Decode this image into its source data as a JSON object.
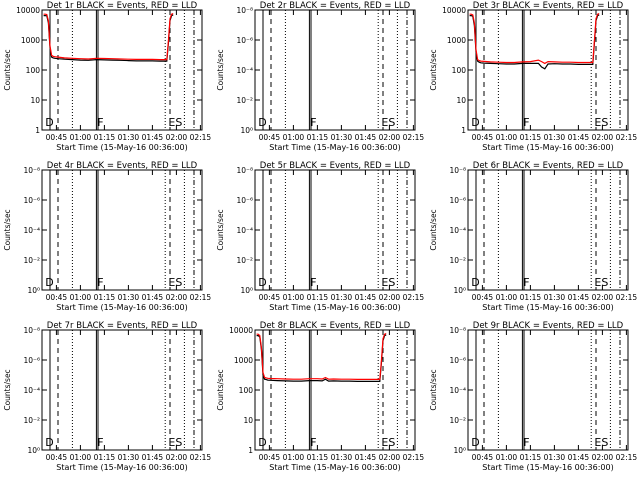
{
  "colors": {
    "events": "#000000",
    "lld": "#ff0000"
  },
  "chart_data": [
    {
      "type": "line",
      "title": "Det 1r BLACK = Events, RED = LLD",
      "xlabel": "Start Time (15-May-16 00:36:00)",
      "ylabel": "Counts/sec",
      "xticks": [
        "00:45",
        "01:00",
        "01:15",
        "01:30",
        "01:45",
        "02:00",
        "02:15"
      ],
      "yticks": [
        "1",
        "10",
        "100",
        "1000",
        "10000"
      ],
      "ylim": [
        1,
        14000
      ],
      "log_y": true,
      "markers": [
        "D",
        "F",
        "ES"
      ],
      "series": [
        {
          "name": "Events",
          "color": "#000000",
          "x": [
            37,
            38,
            39,
            40,
            41,
            42,
            43,
            44,
            46,
            50,
            55,
            60,
            65,
            70,
            75,
            80,
            85,
            90,
            95,
            100,
            105,
            110,
            114,
            115,
            116,
            117,
            118
          ],
          "y": [
            9000,
            9000,
            8800,
            5000,
            700,
            330,
            310,
            300,
            290,
            280,
            270,
            260,
            255,
            270,
            265,
            260,
            255,
            250,
            245,
            245,
            245,
            240,
            240,
            1000,
            6000,
            9000,
            9500
          ]
        },
        {
          "name": "LLD",
          "color": "#ff0000",
          "x": [
            37,
            38,
            39,
            40,
            41,
            42,
            43,
            44,
            46,
            50,
            55,
            60,
            65,
            70,
            75,
            80,
            85,
            90,
            95,
            100,
            105,
            110,
            114,
            115,
            116,
            117,
            118
          ],
          "y": [
            10000,
            10000,
            9800,
            6000,
            800,
            380,
            350,
            340,
            330,
            310,
            300,
            290,
            285,
            300,
            295,
            290,
            285,
            280,
            275,
            275,
            275,
            270,
            270,
            1200,
            7000,
            10000,
            10500
          ]
        }
      ]
    },
    {
      "type": "line",
      "title": "Det 2r BLACK = Events, RED = LLD",
      "xlabel": "Start Time (15-May-16 00:36:00)",
      "ylabel": "Counts/sec",
      "xticks": [
        "00:45",
        "01:00",
        "01:15",
        "01:30",
        "01:45",
        "02:00",
        "02:15"
      ],
      "yticks": [
        "10⁰",
        "10⁻²",
        "10⁻⁴",
        "10⁻⁶",
        "10⁻⁸"
      ],
      "ylim": [
        0.7,
        1e-08
      ],
      "log_y": true,
      "markers": [
        "D",
        "F",
        "ES"
      ],
      "series": []
    },
    {
      "type": "line",
      "title": "Det 3r BLACK = Events, RED = LLD",
      "xlabel": "Start Time (15-May-16 00:36:00)",
      "ylabel": "Counts/sec",
      "xticks": [
        "00:45",
        "01:00",
        "01:15",
        "01:30",
        "01:45",
        "02:00",
        "02:15"
      ],
      "yticks": [
        "1",
        "10",
        "100",
        "1000",
        "10000"
      ],
      "ylim": [
        1,
        14000
      ],
      "log_y": true,
      "markers": [
        "D",
        "F",
        "ES"
      ],
      "series": [
        {
          "name": "Events",
          "color": "#000000",
          "x": [
            37,
            38,
            39,
            40,
            41,
            42,
            43,
            44,
            46,
            50,
            55,
            60,
            65,
            70,
            75,
            80,
            82,
            84,
            86,
            90,
            95,
            100,
            105,
            110,
            114,
            115,
            116,
            117,
            118
          ],
          "y": [
            9000,
            9000,
            8500,
            4000,
            500,
            240,
            220,
            210,
            205,
            200,
            195,
            190,
            190,
            200,
            200,
            200,
            150,
            130,
            190,
            195,
            190,
            190,
            185,
            185,
            185,
            1000,
            6000,
            9000,
            9500
          ]
        },
        {
          "name": "LLD",
          "color": "#ff0000",
          "x": [
            37,
            38,
            39,
            40,
            41,
            42,
            43,
            44,
            46,
            50,
            55,
            60,
            65,
            70,
            75,
            80,
            82,
            84,
            86,
            90,
            95,
            100,
            105,
            110,
            114,
            115,
            116,
            117,
            118
          ],
          "y": [
            10000,
            10000,
            9500,
            5000,
            600,
            270,
            250,
            240,
            235,
            225,
            220,
            215,
            215,
            225,
            230,
            260,
            230,
            200,
            230,
            225,
            220,
            220,
            215,
            215,
            215,
            1200,
            7000,
            10000,
            10500
          ]
        }
      ]
    },
    {
      "type": "line",
      "title": "Det 4r BLACK = Events, RED = LLD",
      "xlabel": "Start Time (15-May-16 00:36:00)",
      "ylabel": "Counts/sec",
      "xticks": [
        "00:45",
        "01:00",
        "01:15",
        "01:30",
        "01:45",
        "02:00",
        "02:15"
      ],
      "yticks": [
        "10⁰",
        "10⁻²",
        "10⁻⁴",
        "10⁻⁶",
        "10⁻⁸"
      ],
      "ylim": [
        0.7,
        1e-08
      ],
      "log_y": true,
      "markers": [
        "D",
        "F",
        "ES"
      ],
      "series": []
    },
    {
      "type": "line",
      "title": "Det 5r BLACK = Events, RED = LLD",
      "xlabel": "Start Time (15-May-16 00:36:00)",
      "ylabel": "Counts/sec",
      "xticks": [
        "00:45",
        "01:00",
        "01:15",
        "01:30",
        "01:45",
        "02:00",
        "02:15"
      ],
      "yticks": [
        "10⁰",
        "10⁻²",
        "10⁻⁴",
        "10⁻⁶",
        "10⁻⁸"
      ],
      "ylim": [
        0.7,
        1e-08
      ],
      "log_y": true,
      "markers": [
        "D",
        "F",
        "ES"
      ],
      "series": []
    },
    {
      "type": "line",
      "title": "Det 6r BLACK = Events, RED = LLD",
      "xlabel": "Start Time (15-May-16 00:36:00)",
      "ylabel": "Counts/sec",
      "xticks": [
        "00:45",
        "01:00",
        "01:15",
        "01:30",
        "01:45",
        "02:00",
        "02:15"
      ],
      "yticks": [
        "10⁰",
        "10⁻²",
        "10⁻⁴",
        "10⁻⁶",
        "10⁻⁸"
      ],
      "ylim": [
        0.7,
        1e-08
      ],
      "log_y": true,
      "markers": [
        "D",
        "F",
        "ES"
      ],
      "series": []
    },
    {
      "type": "line",
      "title": "Det 7r BLACK = Events, RED = LLD",
      "xlabel": "Start Time (15-May-16 00:36:00)",
      "ylabel": "Counts/sec",
      "xticks": [
        "00:45",
        "01:00",
        "01:15",
        "01:30",
        "01:45",
        "02:00",
        "02:15"
      ],
      "yticks": [
        "10⁰",
        "10⁻²",
        "10⁻⁴",
        "10⁻⁶",
        "10⁻⁸"
      ],
      "ylim": [
        0.7,
        1e-08
      ],
      "log_y": true,
      "markers": [
        "D",
        "F",
        "ES"
      ],
      "series": []
    },
    {
      "type": "line",
      "title": "Det 8r BLACK = Events, RED = LLD",
      "xlabel": "Start Time (15-May-16 00:36:00)",
      "ylabel": "Counts/sec",
      "xticks": [
        "00:45",
        "01:00",
        "01:15",
        "01:30",
        "01:45",
        "02:00",
        "02:15"
      ],
      "yticks": [
        "1",
        "10",
        "100",
        "1000",
        "10000"
      ],
      "ylim": [
        1,
        14000
      ],
      "log_y": true,
      "markers": [
        "D",
        "F",
        "ES"
      ],
      "series": [
        {
          "name": "Events",
          "color": "#000000",
          "x": [
            37,
            38,
            39,
            40,
            41,
            42,
            43,
            44,
            46,
            50,
            55,
            60,
            65,
            70,
            75,
            78,
            80,
            82,
            85,
            90,
            95,
            100,
            105,
            110,
            114,
            115,
            116,
            117,
            118
          ],
          "y": [
            9000,
            9000,
            8000,
            3000,
            400,
            280,
            270,
            260,
            255,
            250,
            245,
            240,
            240,
            250,
            250,
            245,
            280,
            240,
            245,
            240,
            240,
            235,
            235,
            235,
            235,
            1000,
            6000,
            9000,
            9500
          ]
        },
        {
          "name": "LLD",
          "color": "#ff0000",
          "x": [
            37,
            38,
            39,
            40,
            41,
            42,
            43,
            44,
            46,
            50,
            55,
            60,
            65,
            70,
            75,
            78,
            80,
            82,
            85,
            90,
            95,
            100,
            105,
            110,
            114,
            115,
            116,
            117,
            118
          ],
          "y": [
            10000,
            10000,
            9000,
            3500,
            480,
            320,
            310,
            300,
            295,
            290,
            285,
            280,
            280,
            290,
            290,
            285,
            320,
            280,
            285,
            280,
            280,
            275,
            275,
            275,
            275,
            1200,
            7000,
            10000,
            10500
          ]
        }
      ]
    },
    {
      "type": "line",
      "title": "Det 9r BLACK = Events, RED = LLD",
      "xlabel": "Start Time (15-May-16 00:36:00)",
      "ylabel": "Counts/sec",
      "xticks": [
        "00:45",
        "01:00",
        "01:15",
        "01:30",
        "01:45",
        "02:00",
        "02:15"
      ],
      "yticks": [
        "10⁰",
        "10⁻²",
        "10⁻⁴",
        "10⁻⁶",
        "10⁻⁸"
      ],
      "ylim": [
        0.7,
        1e-08
      ],
      "log_y": true,
      "markers": [
        "D",
        "F",
        "ES"
      ],
      "series": []
    }
  ]
}
